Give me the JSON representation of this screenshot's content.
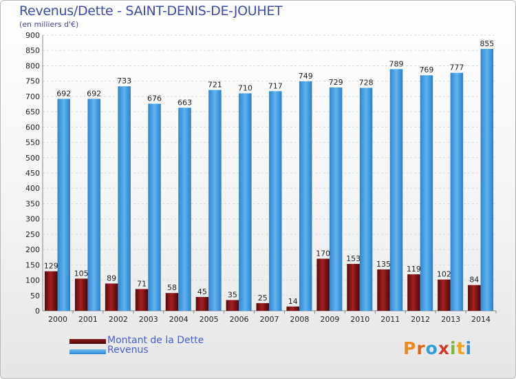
{
  "header": {
    "title": "Revenus/Dette - SAINT-DENIS-DE-JOUHET",
    "subtitle": "(en milliers d'€)"
  },
  "legend": {
    "debt_label": "Montant de la Dette",
    "revenue_label": "Revenus"
  },
  "logo": {
    "text": "Proxiti",
    "letters": [
      "P",
      "r",
      "o",
      "x",
      "i",
      "t",
      "i"
    ]
  },
  "colors": {
    "debt": "#7a1212",
    "revenue": "#4da3e6",
    "logo": [
      "#ef8a1f",
      "#e0651a",
      "#2f9fd8",
      "#d03a2a",
      "#7db83a",
      "#f2a31d",
      "#3a8fd0"
    ]
  },
  "chart_data": {
    "type": "bar",
    "title": "Revenus/Dette - SAINT-DENIS-DE-JOUHET",
    "subtitle": "(en milliers d'€)",
    "categories": [
      "2000",
      "2001",
      "2002",
      "2003",
      "2004",
      "2005",
      "2006",
      "2007",
      "2008",
      "2009",
      "2010",
      "2011",
      "2012",
      "2013",
      "2014"
    ],
    "series": [
      {
        "name": "Montant de la Dette",
        "values": [
          129,
          105,
          89,
          71,
          58,
          45,
          35,
          25,
          14,
          170,
          153,
          135,
          119,
          102,
          84
        ]
      },
      {
        "name": "Revenus",
        "values": [
          692,
          692,
          733,
          676,
          663,
          721,
          710,
          717,
          749,
          729,
          728,
          789,
          769,
          777,
          855
        ]
      }
    ],
    "ylim": [
      0,
      900
    ],
    "yticks": [
      0,
      50,
      100,
      150,
      200,
      250,
      300,
      350,
      400,
      450,
      500,
      550,
      600,
      650,
      700,
      750,
      800,
      850,
      900
    ],
    "grid": true,
    "legend_position": "bottom-left"
  }
}
